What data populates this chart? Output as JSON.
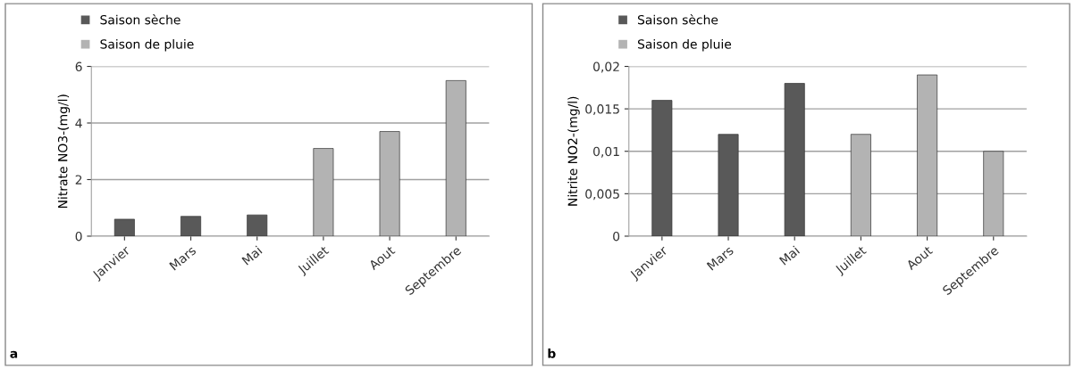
{
  "chart_data": [
    {
      "type": "bar",
      "ylabel": "Nitrate NO3-(mg/l)",
      "categories": [
        "Janvier",
        "Mars",
        "Mai",
        "Juillet",
        "Aout",
        "Septembre"
      ],
      "series": [
        {
          "name": "Saison sèche",
          "color": "#595959",
          "values": [
            0.6,
            0.7,
            0.75,
            null,
            null,
            null
          ]
        },
        {
          "name": "Saison de pluie",
          "color": "#b3b3b3",
          "values": [
            null,
            null,
            null,
            3.1,
            3.7,
            5.5
          ]
        }
      ],
      "ylim": [
        0,
        6
      ],
      "yticks": [
        0,
        2,
        4,
        6
      ],
      "grid": "y",
      "legend": "top left",
      "annotations": [
        "a"
      ]
    },
    {
      "type": "bar",
      "ylabel": "Nitrite NO2-(mg/l)",
      "categories": [
        "Janvier",
        "Mars",
        "Mai",
        "Juillet",
        "Aout",
        "Septembre"
      ],
      "series": [
        {
          "name": "Saison sèche",
          "color": "#595959",
          "values": [
            0.016,
            0.012,
            0.018,
            null,
            null,
            null
          ]
        },
        {
          "name": "Saison de pluie",
          "color": "#b3b3b3",
          "values": [
            null,
            null,
            null,
            0.012,
            0.019,
            0.01
          ]
        }
      ],
      "ylim": [
        0,
        0.02
      ],
      "yticks": [
        0,
        {
          "value": 0.005,
          "label": "0,005"
        },
        {
          "value": 0.01,
          "label": "0,01"
        },
        {
          "value": 0.015,
          "label": "0,015"
        },
        {
          "value": 0.02,
          "label": "0,02"
        }
      ],
      "grid": "y",
      "legend": "top left",
      "annotations": [
        "b"
      ]
    }
  ]
}
